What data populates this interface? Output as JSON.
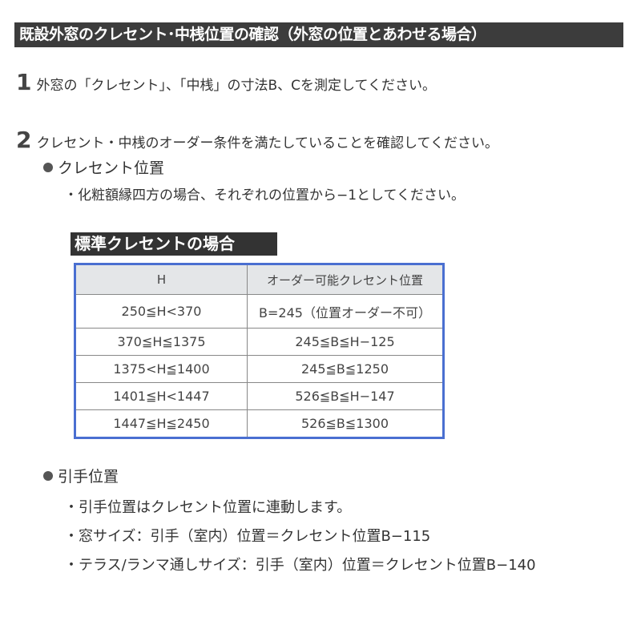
{
  "title": "既設外窓のクレセント･中桟位置の確認（外窓の位置とあわせる場合）",
  "steps": [
    {
      "number": "1",
      "text": "外窓の「クレセント」、「中桟」の寸法B、Cを測定してください。"
    },
    {
      "number": "2",
      "text": "クレセント・中桟のオーダー条件を満たしていることを確認してください。"
    }
  ],
  "crescent_section": {
    "heading": "クレセント位置",
    "note": "・化粧額縁四方の場合、それぞれの位置から−1としてください。"
  },
  "table": {
    "label": "標準クレセントの場合",
    "headers": [
      "H",
      "オーダー可能クレセント位置"
    ],
    "rows": [
      [
        "250≦H<370",
        "B=245（位置オーダー不可）"
      ],
      [
        "370≦H≦1375",
        "245≦B≦H−125"
      ],
      [
        "1375<H≦1400",
        "245≦B≦1250"
      ],
      [
        "1401≦H<1447",
        "526≦B≦H−147"
      ],
      [
        "1447≦H≦2450",
        "526≦B≦1300"
      ]
    ]
  },
  "handle_section": {
    "heading": "引手位置",
    "items": [
      "・引手位置はクレセント位置に連動します。",
      "・窓サイズ：引手（室内）位置＝クレセント位置B−115",
      "・テラス/ランマ通しサイズ：引手（室内）位置＝クレセント位置B−140"
    ]
  },
  "colors": {
    "title_bg": "#3c3c3c",
    "table_border": "#4a6fd1",
    "header_bg": "#e4e6e8"
  }
}
